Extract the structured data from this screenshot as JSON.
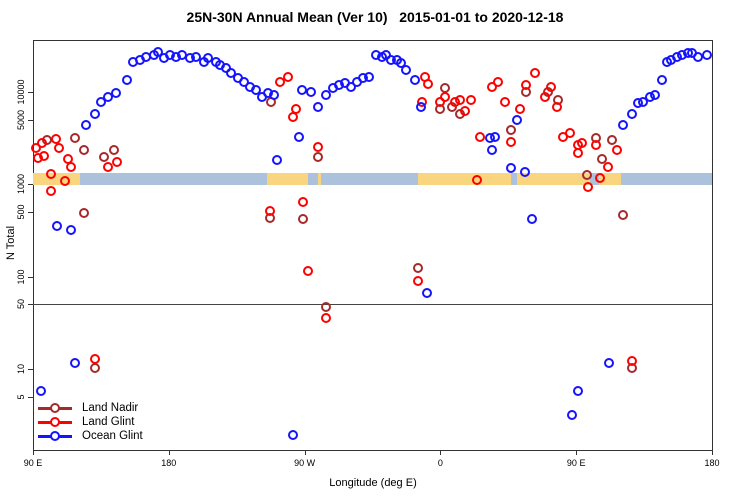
{
  "chart_data": {
    "type": "scatter",
    "title": "25N-30N Annual Mean (Ver 10)   2015-01-01 to 2020-12-18",
    "xlabel": "Longitude (deg E)",
    "ylabel": "N Total",
    "y_scale": "log",
    "ylim": [
      1.2,
      36000
    ],
    "x_axis_span_deg": 450,
    "x_ticks": [
      {
        "deg": 0,
        "label": "90 E"
      },
      {
        "deg": 90,
        "label": "180"
      },
      {
        "deg": 180,
        "label": "90 W"
      },
      {
        "deg": 270,
        "label": "0"
      },
      {
        "deg": 360,
        "label": "90 E"
      },
      {
        "deg": 450,
        "label": "180"
      }
    ],
    "y_ticks": [
      "10000",
      "5000",
      "1000",
      "500",
      "100",
      "50",
      "10",
      "5"
    ],
    "reference_line_n": 50,
    "map_band": {
      "center_n": 1000,
      "land_color": "#F8D57E",
      "ocean_color": "#ABC1DC",
      "segments": [
        {
          "type": "land",
          "from_deg": 0,
          "to_deg": 31
        },
        {
          "type": "ocean",
          "from_deg": 31,
          "to_deg": 155
        },
        {
          "type": "land",
          "from_deg": 155,
          "to_deg": 182
        },
        {
          "type": "ocean",
          "from_deg": 182,
          "to_deg": 189
        },
        {
          "type": "land",
          "from_deg": 189,
          "to_deg": 191
        },
        {
          "type": "ocean",
          "from_deg": 191,
          "to_deg": 255
        },
        {
          "type": "land",
          "from_deg": 255,
          "to_deg": 317
        },
        {
          "type": "ocean",
          "from_deg": 317,
          "to_deg": 321
        },
        {
          "type": "land",
          "from_deg": 321,
          "to_deg": 369
        },
        {
          "type": "ocean",
          "from_deg": 369,
          "to_deg": 375
        },
        {
          "type": "land",
          "from_deg": 375,
          "to_deg": 390
        },
        {
          "type": "ocean",
          "from_deg": 390,
          "to_deg": 450
        }
      ]
    },
    "series": [
      {
        "name": "Land Nadir",
        "color": "#A52A2A",
        "points": [
          [
            9,
            3000
          ],
          [
            28,
            3200
          ],
          [
            34,
            2350
          ],
          [
            47,
            1960
          ],
          [
            54,
            2350
          ],
          [
            34,
            490
          ],
          [
            158,
            7800
          ],
          [
            189,
            1960
          ],
          [
            157,
            435
          ],
          [
            179,
            425
          ],
          [
            194,
            47
          ],
          [
            255,
            125
          ],
          [
            270,
            6600
          ],
          [
            273,
            11000
          ],
          [
            278,
            6900
          ],
          [
            283,
            5800
          ],
          [
            317,
            3900
          ],
          [
            327,
            10000
          ],
          [
            341,
            10000
          ],
          [
            348,
            8200
          ],
          [
            367,
            1260
          ],
          [
            373,
            3200
          ],
          [
            377,
            1890
          ],
          [
            384,
            3000
          ],
          [
            391,
            460
          ],
          [
            397,
            10.2
          ],
          [
            41,
            10.2
          ]
        ]
      },
      {
        "name": "Land Glint",
        "color": "#FF0000",
        "points": [
          [
            2,
            2460
          ],
          [
            3,
            1920
          ],
          [
            6,
            2800
          ],
          [
            7,
            2020
          ],
          [
            15,
            3100
          ],
          [
            17,
            2460
          ],
          [
            23,
            1890
          ],
          [
            25,
            1540
          ],
          [
            12,
            1290
          ],
          [
            21,
            1080
          ],
          [
            12,
            845
          ],
          [
            50,
            1540
          ],
          [
            56,
            1750
          ],
          [
            164,
            12800
          ],
          [
            169,
            14500
          ],
          [
            174,
            6600
          ],
          [
            172,
            5340
          ],
          [
            189,
            2510
          ],
          [
            179,
            640
          ],
          [
            157,
            520
          ],
          [
            182,
            115
          ],
          [
            194,
            36
          ],
          [
            260,
            14500
          ],
          [
            262,
            12300
          ],
          [
            258,
            7800
          ],
          [
            270,
            7800
          ],
          [
            273,
            8800
          ],
          [
            280,
            7800
          ],
          [
            283,
            8200
          ],
          [
            286,
            6250
          ],
          [
            290,
            8200
          ],
          [
            296,
            3260
          ],
          [
            294,
            1110
          ],
          [
            255,
            90
          ],
          [
            304,
            11300
          ],
          [
            308,
            12800
          ],
          [
            313,
            7800
          ],
          [
            323,
            6600
          ],
          [
            333,
            16100
          ],
          [
            327,
            11900
          ],
          [
            339,
            8800
          ],
          [
            343,
            11300
          ],
          [
            347,
            6900
          ],
          [
            317,
            2870
          ],
          [
            351,
            3260
          ],
          [
            356,
            3600
          ],
          [
            361,
            2650
          ],
          [
            364,
            2800
          ],
          [
            373,
            2650
          ],
          [
            361,
            2180
          ],
          [
            387,
            2350
          ],
          [
            381,
            1540
          ],
          [
            368,
            930
          ],
          [
            376,
            1170
          ],
          [
            397,
            12.2
          ],
          [
            41,
            12.9
          ]
        ]
      },
      {
        "name": "Ocean Glint",
        "color": "#1414FF",
        "points": [
          [
            35,
            4400
          ],
          [
            41,
            5800
          ],
          [
            45,
            7800
          ],
          [
            50,
            8800
          ],
          [
            55,
            9700
          ],
          [
            62,
            13500
          ],
          [
            66,
            21000
          ],
          [
            71,
            22200
          ],
          [
            75,
            23900
          ],
          [
            80,
            25200
          ],
          [
            83,
            27100
          ],
          [
            87,
            23300
          ],
          [
            91,
            25200
          ],
          [
            95,
            23900
          ],
          [
            99,
            25200
          ],
          [
            104,
            23300
          ],
          [
            108,
            23900
          ],
          [
            113,
            21000
          ],
          [
            116,
            23300
          ],
          [
            121,
            21000
          ],
          [
            124,
            19600
          ],
          [
            128,
            18200
          ],
          [
            131,
            16100
          ],
          [
            136,
            14200
          ],
          [
            140,
            12800
          ],
          [
            144,
            11300
          ],
          [
            148,
            10500
          ],
          [
            152,
            8800
          ],
          [
            156,
            9700
          ],
          [
            160,
            9300
          ],
          [
            178,
            10500
          ],
          [
            184,
            10000
          ],
          [
            189,
            6900
          ],
          [
            194,
            9300
          ],
          [
            199,
            11000
          ],
          [
            203,
            11900
          ],
          [
            207,
            12500
          ],
          [
            211,
            11300
          ],
          [
            215,
            12800
          ],
          [
            219,
            14200
          ],
          [
            223,
            14500
          ],
          [
            227,
            25200
          ],
          [
            231,
            23900
          ],
          [
            234,
            25200
          ],
          [
            237,
            22200
          ],
          [
            241,
            22200
          ],
          [
            244,
            20600
          ],
          [
            247,
            17300
          ],
          [
            253,
            13500
          ],
          [
            257,
            6800
          ],
          [
            303,
            3180
          ],
          [
            306,
            3260
          ],
          [
            304,
            2350
          ],
          [
            321,
            5000
          ],
          [
            317,
            1510
          ],
          [
            326,
            1370
          ],
          [
            331,
            425
          ],
          [
            391,
            4400
          ],
          [
            397,
            5800
          ],
          [
            401,
            7600
          ],
          [
            404,
            7800
          ],
          [
            409,
            8800
          ],
          [
            412,
            9300
          ],
          [
            417,
            13500
          ],
          [
            420,
            21000
          ],
          [
            423,
            22200
          ],
          [
            427,
            23900
          ],
          [
            430,
            25200
          ],
          [
            434,
            26500
          ],
          [
            437,
            26500
          ],
          [
            441,
            23900
          ],
          [
            447,
            25200
          ],
          [
            16,
            355
          ],
          [
            25,
            320
          ],
          [
            162,
            1830
          ],
          [
            176,
            3260
          ],
          [
            261,
            66
          ],
          [
            28,
            11.6
          ],
          [
            5,
            5.7
          ],
          [
            172,
            1.94
          ],
          [
            382,
            11.6
          ],
          [
            361,
            5.7
          ],
          [
            357,
            3.2
          ]
        ]
      }
    ]
  }
}
